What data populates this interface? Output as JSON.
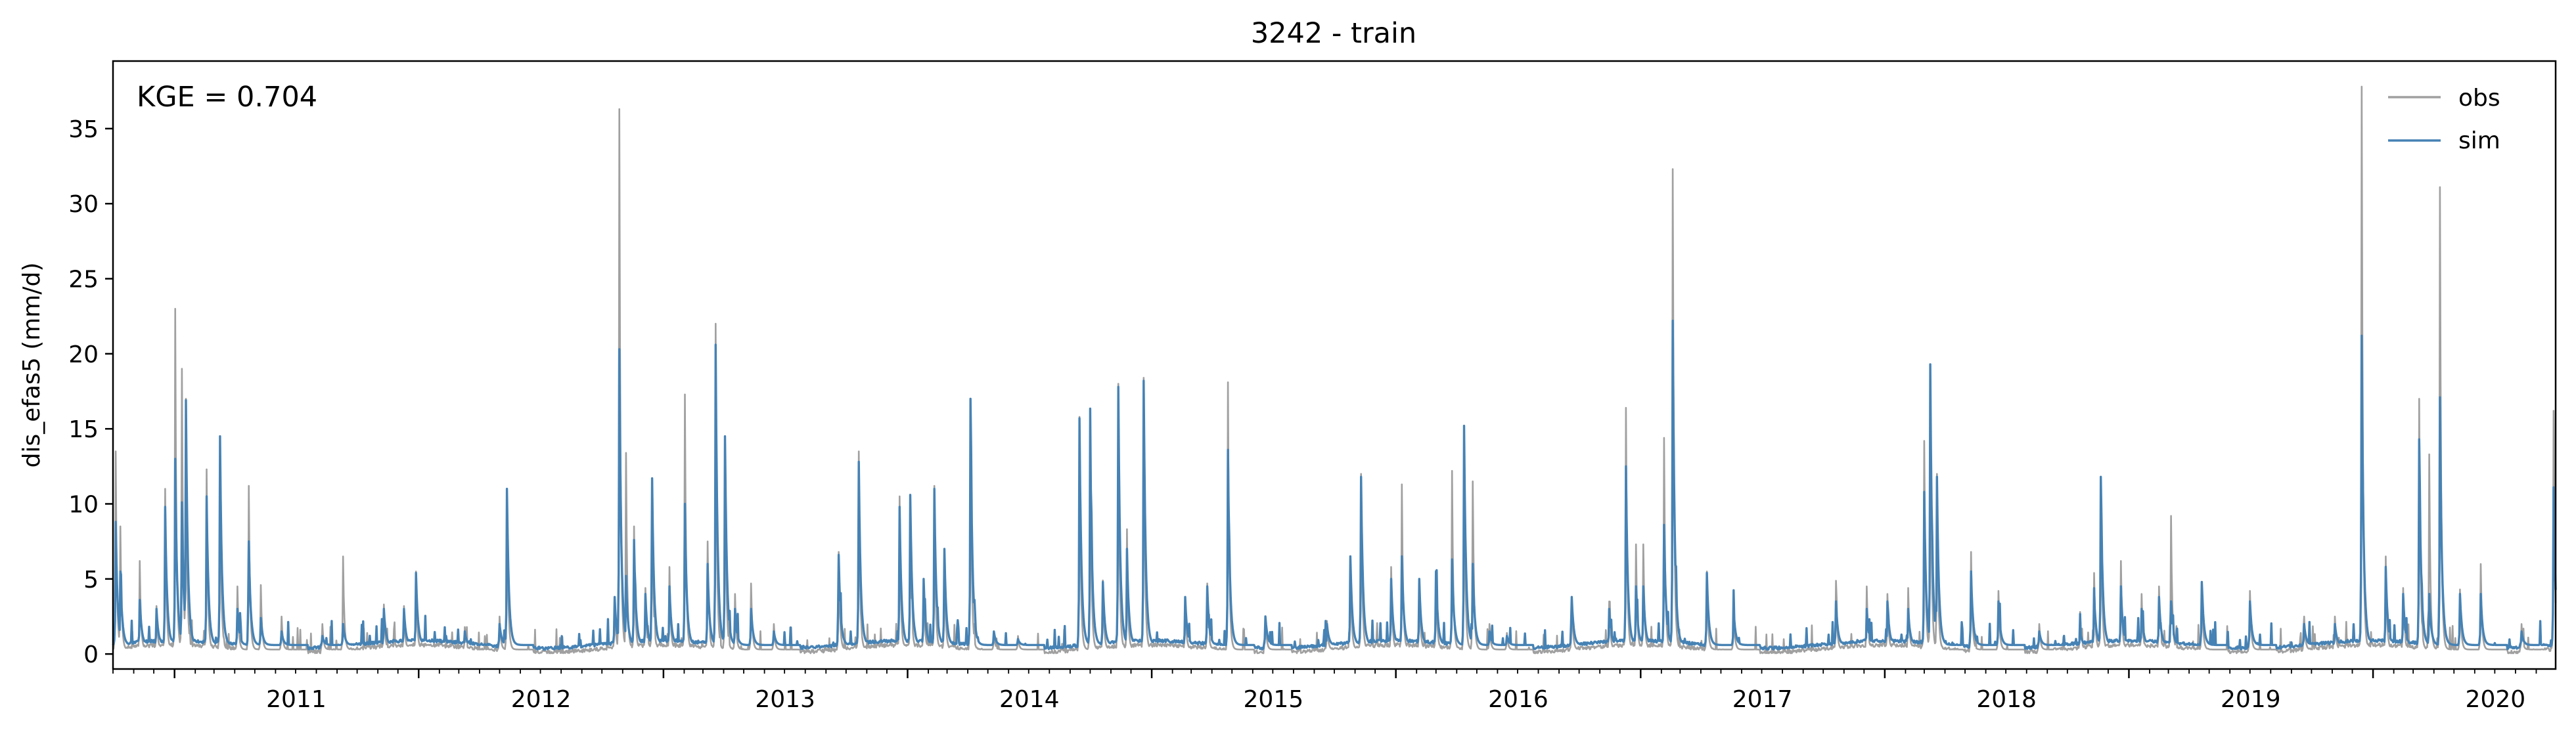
{
  "chart_data": {
    "type": "line",
    "title": "3242 - train",
    "ylabel": "dis_efas5 (mm/d)",
    "xlabel": "",
    "annotation": "KGE = 0.704",
    "xlim": [
      "2010-10-01",
      "2020-09-30"
    ],
    "ylim": [
      -1,
      39.5
    ],
    "yticks": [
      0,
      5,
      10,
      15,
      20,
      25,
      30,
      35
    ],
    "ytick_labels": [
      "0",
      "5",
      "10",
      "15",
      "20",
      "25",
      "30",
      "35"
    ],
    "xtick_labels": [
      "2011",
      "2012",
      "2013",
      "2014",
      "2015",
      "2016",
      "2017",
      "2018",
      "2019",
      "2020"
    ],
    "legend_position": "top-right",
    "grid": false,
    "series": [
      {
        "name": "obs",
        "color": "#a0a0a0",
        "peaks": [
          [
            "2010-10-05",
            13.5
          ],
          [
            "2010-10-12",
            8.5
          ],
          [
            "2010-11-10",
            6.2
          ],
          [
            "2010-12-05",
            3.2
          ],
          [
            "2010-12-18",
            11.0
          ],
          [
            "2011-01-02",
            23.0
          ],
          [
            "2011-01-12",
            19.0
          ],
          [
            "2011-01-18",
            17.0
          ],
          [
            "2011-02-18",
            12.3
          ],
          [
            "2011-03-10",
            14.3
          ],
          [
            "2011-04-05",
            4.5
          ],
          [
            "2011-04-22",
            11.2
          ],
          [
            "2011-05-10",
            4.6
          ],
          [
            "2011-06-10",
            2.5
          ],
          [
            "2011-08-10",
            2.0
          ],
          [
            "2011-09-10",
            6.5
          ],
          [
            "2011-11-10",
            3.3
          ],
          [
            "2011-12-10",
            3.2
          ],
          [
            "2011-12-28",
            5.5
          ],
          [
            "2012-03-10",
            1.8
          ],
          [
            "2012-05-01",
            2.5
          ],
          [
            "2012-05-12",
            11.0
          ],
          [
            "2012-10-20",
            3.7
          ],
          [
            "2012-10-27",
            36.3
          ],
          [
            "2012-11-06",
            13.4
          ],
          [
            "2012-11-18",
            8.5
          ],
          [
            "2012-12-05",
            4.4
          ],
          [
            "2012-12-15",
            11.7
          ],
          [
            "2013-01-10",
            5.8
          ],
          [
            "2013-02-02",
            17.1
          ],
          [
            "2013-03-08",
            7.5
          ],
          [
            "2013-03-20",
            22.0
          ],
          [
            "2013-04-03",
            14.4
          ],
          [
            "2013-04-18",
            4.0
          ],
          [
            "2013-05-12",
            4.7
          ],
          [
            "2013-06-15",
            2.0
          ],
          [
            "2013-09-20",
            6.8
          ],
          [
            "2013-10-20",
            13.5
          ],
          [
            "2013-12-20",
            10.5
          ],
          [
            "2014-01-05",
            10.6
          ],
          [
            "2014-01-25",
            5.0
          ],
          [
            "2014-02-10",
            11.2
          ],
          [
            "2014-02-25",
            7.0
          ],
          [
            "2014-04-05",
            16.9
          ],
          [
            "2014-05-10",
            1.5
          ],
          [
            "2014-06-15",
            1.2
          ],
          [
            "2014-09-15",
            15.8
          ],
          [
            "2014-10-01",
            15.4
          ],
          [
            "2014-10-20",
            4.9
          ],
          [
            "2014-11-12",
            18.0
          ],
          [
            "2014-11-25",
            7.0
          ],
          [
            "2014-12-20",
            18.4
          ],
          [
            "2015-02-20",
            3.8
          ],
          [
            "2015-03-25",
            4.7
          ],
          [
            "2015-04-25",
            18.1
          ],
          [
            "2015-06-20",
            2.5
          ],
          [
            "2015-09-20",
            2.2
          ],
          [
            "2015-10-25",
            6.5
          ],
          [
            "2015-11-10",
            12.0
          ],
          [
            "2015-12-25",
            5.8
          ],
          [
            "2016-01-10",
            11.3
          ],
          [
            "2016-02-05",
            5.0
          ],
          [
            "2016-03-01",
            5.5
          ],
          [
            "2016-03-25",
            12.2
          ],
          [
            "2016-04-12",
            14.0
          ],
          [
            "2016-04-25",
            11.5
          ],
          [
            "2016-05-20",
            2.0
          ],
          [
            "2016-06-15",
            1.4
          ],
          [
            "2016-09-20",
            3.8
          ],
          [
            "2016-11-15",
            3.5
          ],
          [
            "2016-12-10",
            16.4
          ],
          [
            "2016-12-25",
            7.3
          ],
          [
            "2017-01-05",
            7.3
          ],
          [
            "2017-02-05",
            14.4
          ],
          [
            "2017-02-18",
            32.3
          ],
          [
            "2017-04-10",
            5.5
          ],
          [
            "2017-05-20",
            3.0
          ],
          [
            "2017-10-20",
            4.5
          ],
          [
            "2017-12-05",
            4.5
          ],
          [
            "2018-01-05",
            4.0
          ],
          [
            "2018-02-05",
            4.4
          ],
          [
            "2018-03-01",
            14.2
          ],
          [
            "2018-03-10",
            19.3
          ],
          [
            "2018-03-20",
            12.0
          ],
          [
            "2018-05-10",
            6.8
          ],
          [
            "2018-06-20",
            4.2
          ],
          [
            "2018-08-20",
            2.0
          ],
          [
            "2018-10-20",
            2.8
          ],
          [
            "2018-11-10",
            5.4
          ],
          [
            "2018-11-20",
            11.8
          ],
          [
            "2018-12-20",
            6.2
          ],
          [
            "2019-01-20",
            4.0
          ],
          [
            "2019-02-15",
            4.5
          ],
          [
            "2019-03-05",
            9.2
          ],
          [
            "2019-04-20",
            4.8
          ],
          [
            "2019-07-01",
            4.2
          ],
          [
            "2019-09-20",
            2.5
          ],
          [
            "2019-11-05",
            2.5
          ],
          [
            "2019-12-15",
            37.8
          ],
          [
            "2020-01-20",
            6.5
          ],
          [
            "2020-02-15",
            4.4
          ],
          [
            "2020-03-10",
            17.0
          ],
          [
            "2020-03-25",
            13.3
          ],
          [
            "2020-04-10",
            31.1
          ],
          [
            "2020-05-10",
            4.3
          ],
          [
            "2020-06-10",
            6.0
          ],
          [
            "2020-08-10",
            2.0
          ],
          [
            "2020-09-27",
            16.2
          ]
        ]
      },
      {
        "name": "sim",
        "color": "#4682b4",
        "peaks": [
          [
            "2010-10-05",
            8.8
          ],
          [
            "2010-10-12",
            5.5
          ],
          [
            "2010-11-10",
            3.6
          ],
          [
            "2010-12-05",
            3.0
          ],
          [
            "2010-12-18",
            9.8
          ],
          [
            "2011-01-02",
            13.0
          ],
          [
            "2011-01-12",
            10.1
          ],
          [
            "2011-01-18",
            16.9
          ],
          [
            "2011-02-18",
            10.5
          ],
          [
            "2011-03-10",
            14.5
          ],
          [
            "2011-04-05",
            3.0
          ],
          [
            "2011-04-22",
            7.5
          ],
          [
            "2011-05-10",
            2.4
          ],
          [
            "2011-06-10",
            1.5
          ],
          [
            "2011-08-10",
            1.2
          ],
          [
            "2011-09-10",
            2.0
          ],
          [
            "2011-11-10",
            3.0
          ],
          [
            "2011-12-10",
            3.0
          ],
          [
            "2011-12-28",
            5.4
          ],
          [
            "2012-03-10",
            1.5
          ],
          [
            "2012-05-01",
            2.0
          ],
          [
            "2012-05-12",
            11.0
          ],
          [
            "2012-10-20",
            3.8
          ],
          [
            "2012-10-27",
            20.3
          ],
          [
            "2012-11-06",
            5.2
          ],
          [
            "2012-11-18",
            7.6
          ],
          [
            "2012-12-05",
            4.0
          ],
          [
            "2012-12-15",
            11.7
          ],
          [
            "2013-01-10",
            4.5
          ],
          [
            "2013-02-02",
            10.0
          ],
          [
            "2013-03-08",
            6.0
          ],
          [
            "2013-03-20",
            20.6
          ],
          [
            "2013-04-03",
            14.5
          ],
          [
            "2013-04-18",
            3.0
          ],
          [
            "2013-05-12",
            3.0
          ],
          [
            "2013-06-15",
            1.5
          ],
          [
            "2013-09-20",
            6.6
          ],
          [
            "2013-10-20",
            12.8
          ],
          [
            "2013-12-20",
            9.8
          ],
          [
            "2014-01-05",
            10.6
          ],
          [
            "2014-01-25",
            5.0
          ],
          [
            "2014-02-10",
            11.0
          ],
          [
            "2014-02-25",
            7.0
          ],
          [
            "2014-04-05",
            17.0
          ],
          [
            "2014-05-10",
            1.5
          ],
          [
            "2014-06-15",
            1.0
          ],
          [
            "2014-09-15",
            15.7
          ],
          [
            "2014-10-01",
            15.3
          ],
          [
            "2014-10-20",
            4.8
          ],
          [
            "2014-11-12",
            17.8
          ],
          [
            "2014-11-25",
            7.0
          ],
          [
            "2014-12-20",
            18.2
          ],
          [
            "2015-02-20",
            3.8
          ],
          [
            "2015-03-25",
            4.5
          ],
          [
            "2015-04-25",
            13.6
          ],
          [
            "2015-06-20",
            2.5
          ],
          [
            "2015-09-20",
            2.0
          ],
          [
            "2015-10-25",
            6.5
          ],
          [
            "2015-11-10",
            11.8
          ],
          [
            "2015-12-25",
            5.0
          ],
          [
            "2016-01-10",
            6.5
          ],
          [
            "2016-02-05",
            5.0
          ],
          [
            "2016-03-01",
            5.5
          ],
          [
            "2016-03-25",
            6.3
          ],
          [
            "2016-04-12",
            15.2
          ],
          [
            "2016-04-25",
            6.0
          ],
          [
            "2016-05-20",
            1.5
          ],
          [
            "2016-06-15",
            1.2
          ],
          [
            "2016-09-20",
            3.8
          ],
          [
            "2016-11-15",
            3.0
          ],
          [
            "2016-12-10",
            12.5
          ],
          [
            "2016-12-25",
            4.5
          ],
          [
            "2017-01-05",
            4.5
          ],
          [
            "2017-02-05",
            8.6
          ],
          [
            "2017-02-18",
            22.2
          ],
          [
            "2017-04-10",
            5.4
          ],
          [
            "2017-05-20",
            3.0
          ],
          [
            "2017-10-20",
            3.5
          ],
          [
            "2017-12-05",
            3.0
          ],
          [
            "2018-01-05",
            3.5
          ],
          [
            "2018-02-05",
            3.0
          ],
          [
            "2018-03-01",
            10.8
          ],
          [
            "2018-03-10",
            19.3
          ],
          [
            "2018-03-20",
            11.8
          ],
          [
            "2018-05-10",
            5.5
          ],
          [
            "2018-06-20",
            3.5
          ],
          [
            "2018-08-20",
            1.5
          ],
          [
            "2018-10-20",
            1.5
          ],
          [
            "2018-11-10",
            4.0
          ],
          [
            "2018-11-20",
            11.8
          ],
          [
            "2018-12-20",
            4.5
          ],
          [
            "2019-01-20",
            3.0
          ],
          [
            "2019-02-15",
            3.8
          ],
          [
            "2019-03-05",
            3.5
          ],
          [
            "2019-04-20",
            4.8
          ],
          [
            "2019-07-01",
            3.5
          ],
          [
            "2019-09-20",
            2.0
          ],
          [
            "2019-11-05",
            2.0
          ],
          [
            "2019-12-15",
            21.2
          ],
          [
            "2020-01-20",
            5.8
          ],
          [
            "2020-02-15",
            4.0
          ],
          [
            "2020-03-10",
            14.3
          ],
          [
            "2020-03-25",
            4.0
          ],
          [
            "2020-04-10",
            17.1
          ],
          [
            "2020-05-10",
            4.0
          ],
          [
            "2020-06-10",
            4.0
          ],
          [
            "2020-08-10",
            1.5
          ],
          [
            "2020-09-27",
            11.1
          ]
        ]
      }
    ]
  }
}
